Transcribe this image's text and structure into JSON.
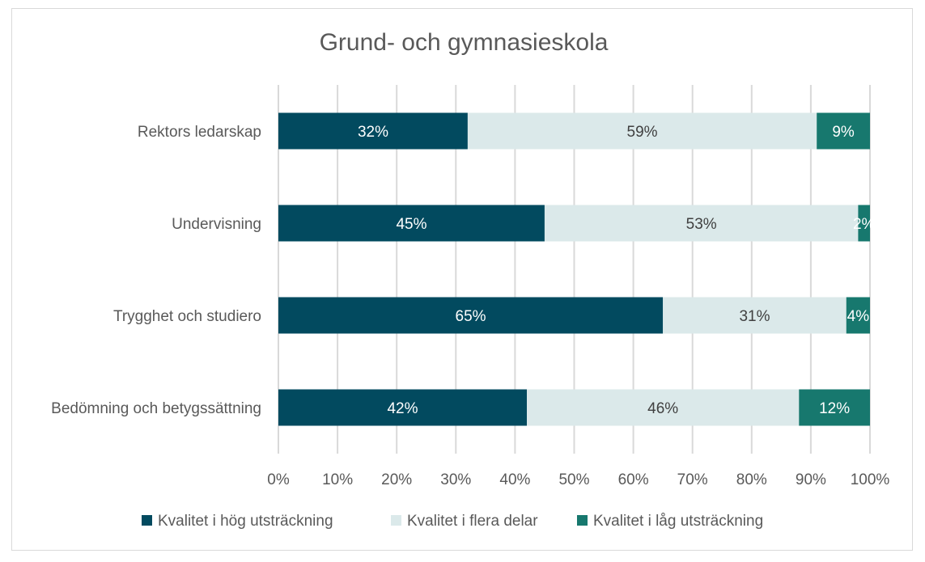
{
  "chart_data": {
    "type": "bar",
    "orientation": "horizontal",
    "stacked": "percent",
    "title": "Grund- och gymnasieskola",
    "categories": [
      "Rektors ledarskap",
      "Undervisning",
      "Trygghet och studiero",
      "Bedömning och betygssättning"
    ],
    "series": [
      {
        "name": "Kvalitet i hög utsträckning",
        "color": "#024a5f",
        "label_color": "#ffffff",
        "values": [
          32,
          45,
          65,
          42
        ]
      },
      {
        "name": "Kvalitet i flera delar",
        "color": "#dbe9ea",
        "label_color": "#404040",
        "values": [
          59,
          53,
          31,
          46
        ]
      },
      {
        "name": "Kvalitet i låg utsträckning",
        "color": "#17786e",
        "label_color": "#ffffff",
        "values": [
          9,
          2,
          4,
          12
        ]
      }
    ],
    "data_labels": [
      [
        "32%",
        "45%",
        "65%",
        "42%"
      ],
      [
        "59%",
        "53%",
        "31%",
        "46%"
      ],
      [
        "9%",
        "2%",
        "4%",
        "12%"
      ]
    ],
    "xlim": [
      0,
      100
    ],
    "xticks": [
      "0%",
      "10%",
      "20%",
      "30%",
      "40%",
      "50%",
      "60%",
      "70%",
      "80%",
      "90%",
      "100%"
    ],
    "grid": "vertical",
    "gridline_color": "#d9d9d9",
    "legend": "bottom"
  }
}
